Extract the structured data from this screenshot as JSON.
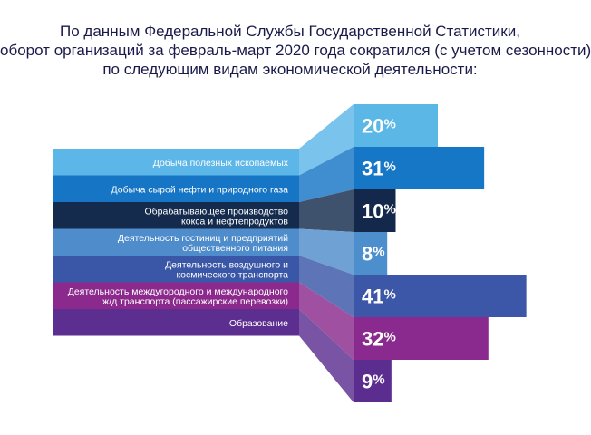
{
  "title": {
    "line1": "По данным Федеральной Службы Государственной Статистики,",
    "line2": "оборот организаций за февраль-март 2020 года сократился (с учетом сезонности)",
    "line3": "по следующим видам экономической деятельности:"
  },
  "chart_data": {
    "type": "bar",
    "categories": [
      [
        "Добыча полезных ископаемых"
      ],
      [
        "Добыча сырой нефти и природного газа"
      ],
      [
        "Обрабатывающее производство",
        "кокса и нефтепродуктов"
      ],
      [
        "Деятельность гостиниц и предприятий",
        "общественного питания"
      ],
      [
        "Деятельность воздушного и",
        "космического транспорта"
      ],
      [
        "Деятельность междугородного и международного",
        "ж/д транспорта (пассажирские перевозки)"
      ],
      [
        "Образование"
      ]
    ],
    "values": [
      20,
      31,
      10,
      8,
      41,
      32,
      9
    ],
    "value_suffix": "%",
    "colors": [
      "#5bb8e6",
      "#1577c6",
      "#13284a",
      "#4d8fcd",
      "#3d57a8",
      "#8a2a8f",
      "#5a2d8f"
    ],
    "left_colors": [
      "#5cb6e8",
      "#1675c4",
      "#142b4d",
      "#4f8ccb",
      "#3a56a6",
      "#8b2a8c",
      "#5b2e90"
    ]
  }
}
